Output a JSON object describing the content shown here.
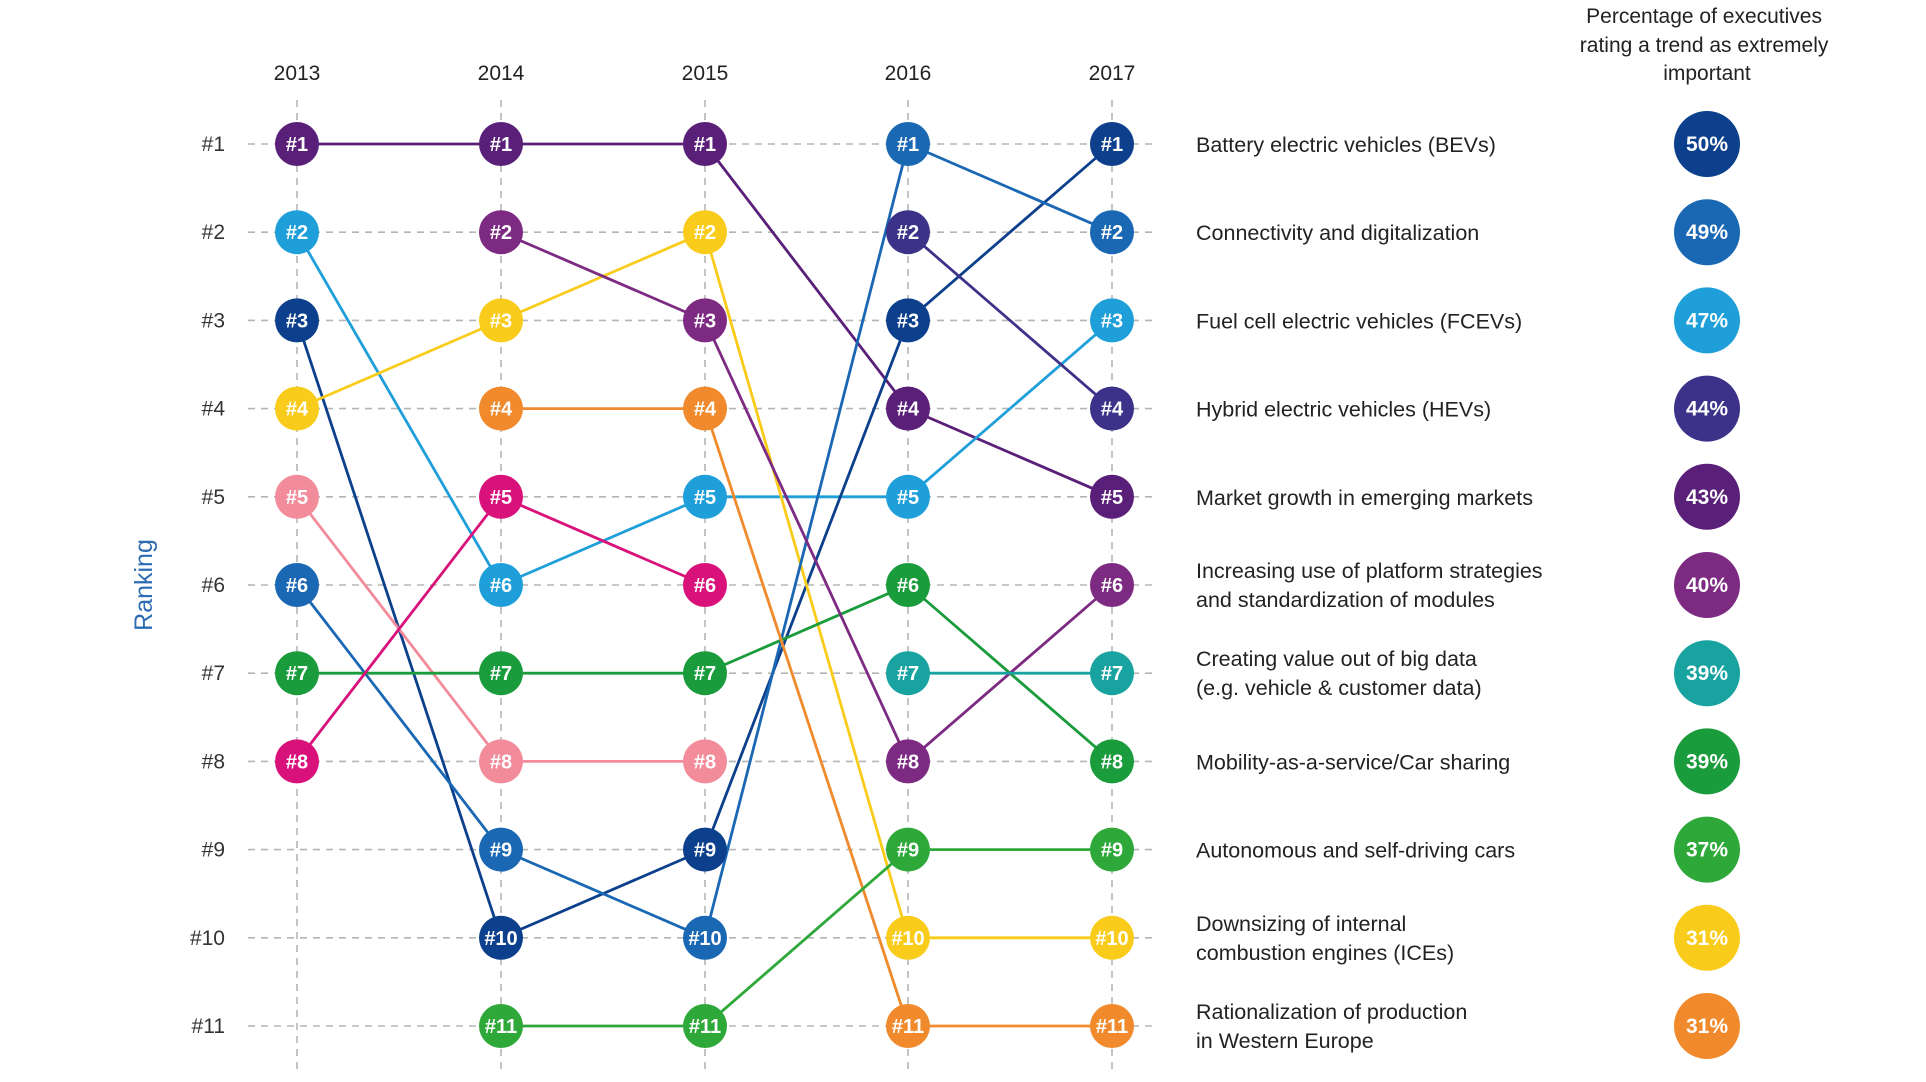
{
  "chart_data": {
    "type": "line",
    "subtype": "bump",
    "title": "",
    "xlabel": "",
    "ylabel": "Ranking",
    "years": [
      "2013",
      "2014",
      "2015",
      "2016",
      "2017"
    ],
    "rank_labels": [
      "#1",
      "#2",
      "#3",
      "#4",
      "#5",
      "#6",
      "#7",
      "#8",
      "#9",
      "#10",
      "#11"
    ],
    "ylim": [
      1,
      11
    ],
    "y_inverted": true,
    "grid": true,
    "legend_placement": "right",
    "pct_header": [
      "Percentage of executives",
      "rating a trend as extremely",
      "important"
    ],
    "trend_labels": [
      [
        "Battery electric vehicles (BEVs)"
      ],
      [
        "Connectivity and digitalization"
      ],
      [
        "Fuel cell electric vehicles (FCEVs)"
      ],
      [
        "Hybrid electric vehicles (HEVs)"
      ],
      [
        "Market growth in emerging markets"
      ],
      [
        "Increasing use of platform strategies",
        "and standardization of modules"
      ],
      [
        "Creating value out of big data",
        "(e.g. vehicle & customer data)"
      ],
      [
        "Mobility-as-a-service/Car sharing"
      ],
      [
        "Autonomous and self-driving cars"
      ],
      [
        "Downsizing of internal",
        "combustion engines (ICEs)"
      ],
      [
        "Rationalization of production",
        "in Western Europe"
      ]
    ],
    "pct_values": [
      "50%",
      "49%",
      "47%",
      "44%",
      "43%",
      "40%",
      "39%",
      "39%",
      "37%",
      "31%",
      "31%"
    ],
    "pct_colors": [
      "#0c3f8c",
      "#1a68b4",
      "#1e9fd9",
      "#3d3289",
      "#5a2079",
      "#7d2a82",
      "#18a3a1",
      "#1a9b3c",
      "#2fa83a",
      "#f9cc1c",
      "#f08a2c"
    ],
    "series": [
      {
        "color": "#5a2079",
        "ranks": [
          1,
          1,
          1,
          4,
          5
        ]
      },
      {
        "color": "#1e9fd9",
        "ranks": [
          2,
          6,
          5,
          5,
          3
        ]
      },
      {
        "color": "#0c3f8c",
        "ranks": [
          3,
          10,
          9,
          3,
          1
        ]
      },
      {
        "color": "#f9cc1c",
        "ranks": [
          4,
          3,
          2,
          10,
          10
        ]
      },
      {
        "color": "#f28b9a",
        "ranks": [
          5,
          8,
          8,
          null,
          null
        ]
      },
      {
        "color": "#1a68b4",
        "ranks": [
          6,
          9,
          10,
          1,
          2
        ]
      },
      {
        "color": "#1a9b3c",
        "ranks": [
          7,
          7,
          7,
          6,
          8
        ]
      },
      {
        "color": "#d9127b",
        "ranks": [
          8,
          5,
          6,
          null,
          null
        ]
      },
      {
        "color": "#7d2a82",
        "ranks": [
          null,
          2,
          3,
          8,
          6
        ]
      },
      {
        "color": "#f08a2c",
        "ranks": [
          null,
          4,
          4,
          11,
          11
        ]
      },
      {
        "color": "#2fa83a",
        "ranks": [
          null,
          11,
          11,
          9,
          9
        ]
      },
      {
        "color": "#3d3289",
        "ranks": [
          null,
          null,
          null,
          2,
          4
        ]
      },
      {
        "color": "#18a3a1",
        "ranks": [
          null,
          null,
          null,
          7,
          7
        ]
      }
    ]
  }
}
